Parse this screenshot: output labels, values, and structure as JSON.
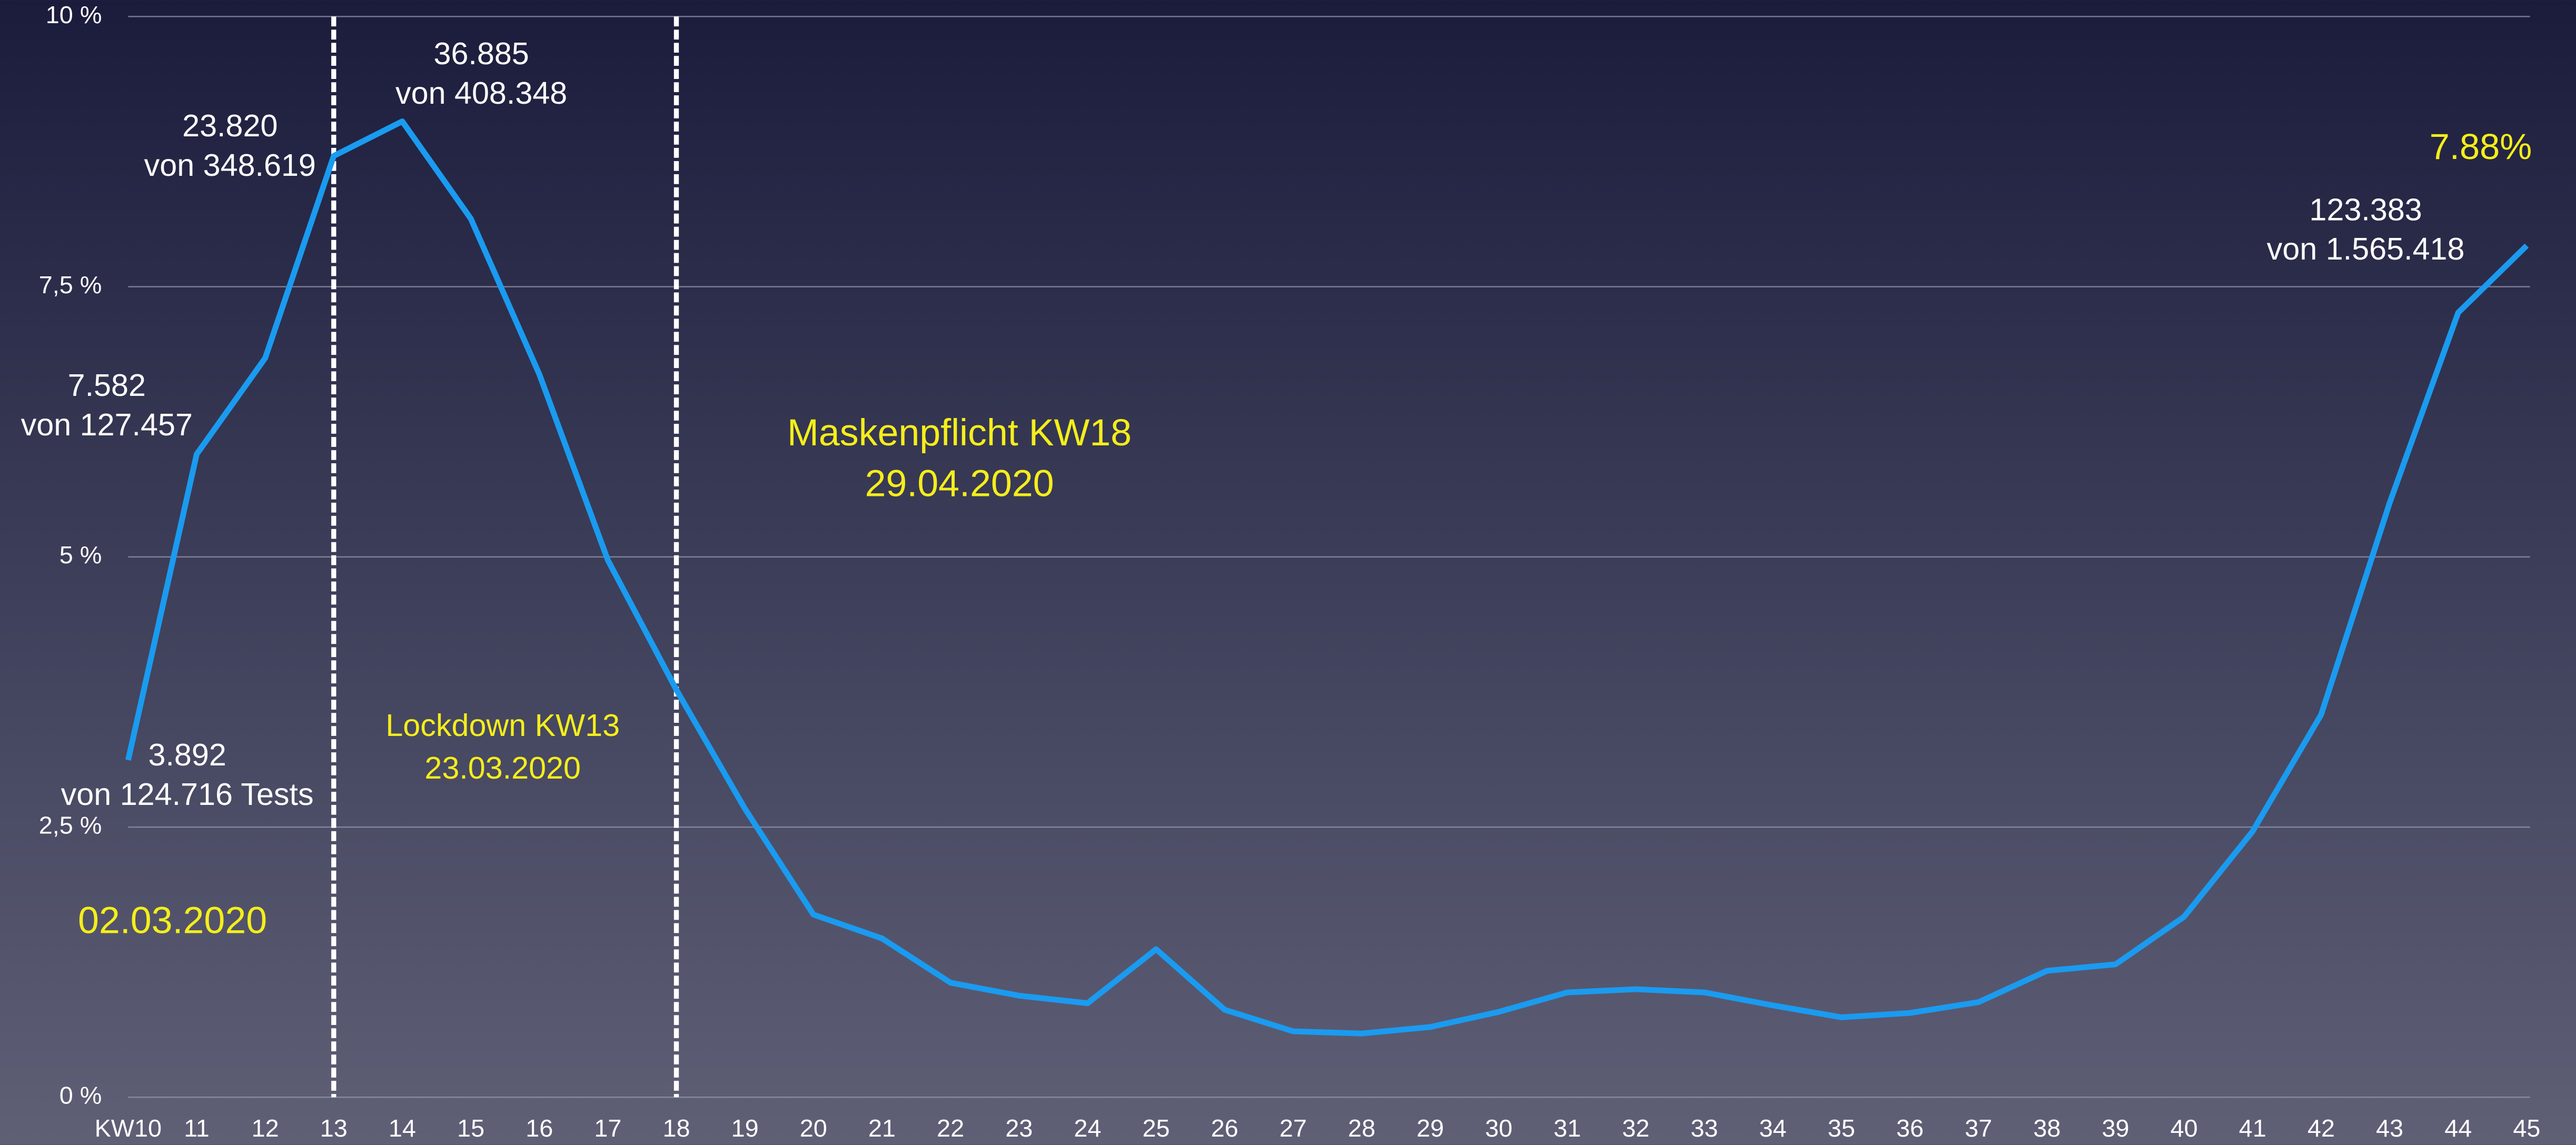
{
  "chart_data": {
    "type": "line",
    "categories": [
      "KW10",
      "11",
      "12",
      "13",
      "14",
      "15",
      "16",
      "17",
      "18",
      "19",
      "20",
      "21",
      "22",
      "23",
      "24",
      "25",
      "26",
      "27",
      "28",
      "29",
      "30",
      "31",
      "32",
      "33",
      "34",
      "35",
      "36",
      "37",
      "38",
      "39",
      "40",
      "41",
      "42",
      "43",
      "44",
      "45"
    ],
    "series": [
      {
        "name": null,
        "color": "#1a9bf0",
        "values": [
          3.12,
          5.95,
          6.84,
          8.71,
          9.03,
          8.13,
          6.69,
          4.97,
          3.77,
          2.67,
          1.69,
          1.47,
          1.06,
          0.94,
          0.87,
          1.37,
          0.81,
          0.61,
          0.59,
          0.65,
          0.79,
          0.97,
          1.0,
          0.97,
          0.85,
          0.74,
          0.78,
          0.88,
          1.17,
          1.23,
          1.67,
          2.46,
          3.54,
          5.5,
          7.26,
          7.88
        ]
      }
    ],
    "ylim": [
      0,
      10
    ],
    "yticks": [
      {
        "value": 0,
        "label": "0 %"
      },
      {
        "value": 2.5,
        "label": "2,5 %"
      },
      {
        "value": 5,
        "label": "5 %"
      },
      {
        "value": 7.5,
        "label": "7,5 %"
      },
      {
        "value": 10,
        "label": "10 %"
      }
    ],
    "grid": true,
    "vlines": [
      "13",
      "18"
    ],
    "annotations": [
      {
        "lines": [
          "3.892",
          "von 124.716 Tests"
        ],
        "color": "#ffffff"
      },
      {
        "lines": [
          "7.582",
          "von 127.457"
        ],
        "color": "#ffffff"
      },
      {
        "lines": [
          "23.820",
          "von 348.619"
        ],
        "color": "#ffffff"
      },
      {
        "lines": [
          "36.885",
          "von 408.348"
        ],
        "color": "#ffffff"
      },
      {
        "lines": [
          "123.383",
          "von 1.565.418"
        ],
        "color": "#ffffff"
      },
      {
        "lines": [
          "7.88%"
        ],
        "color": "#f5ee1a"
      },
      {
        "lines": [
          "Lockdown KW13",
          "23.03.2020"
        ],
        "color": "#f5ee1a"
      },
      {
        "lines": [
          "Maskenpflicht KW18",
          "29.04.2020"
        ],
        "color": "#f5ee1a"
      },
      {
        "lines": [
          "02.03.2020"
        ],
        "color": "#f5ee1a"
      }
    ]
  }
}
